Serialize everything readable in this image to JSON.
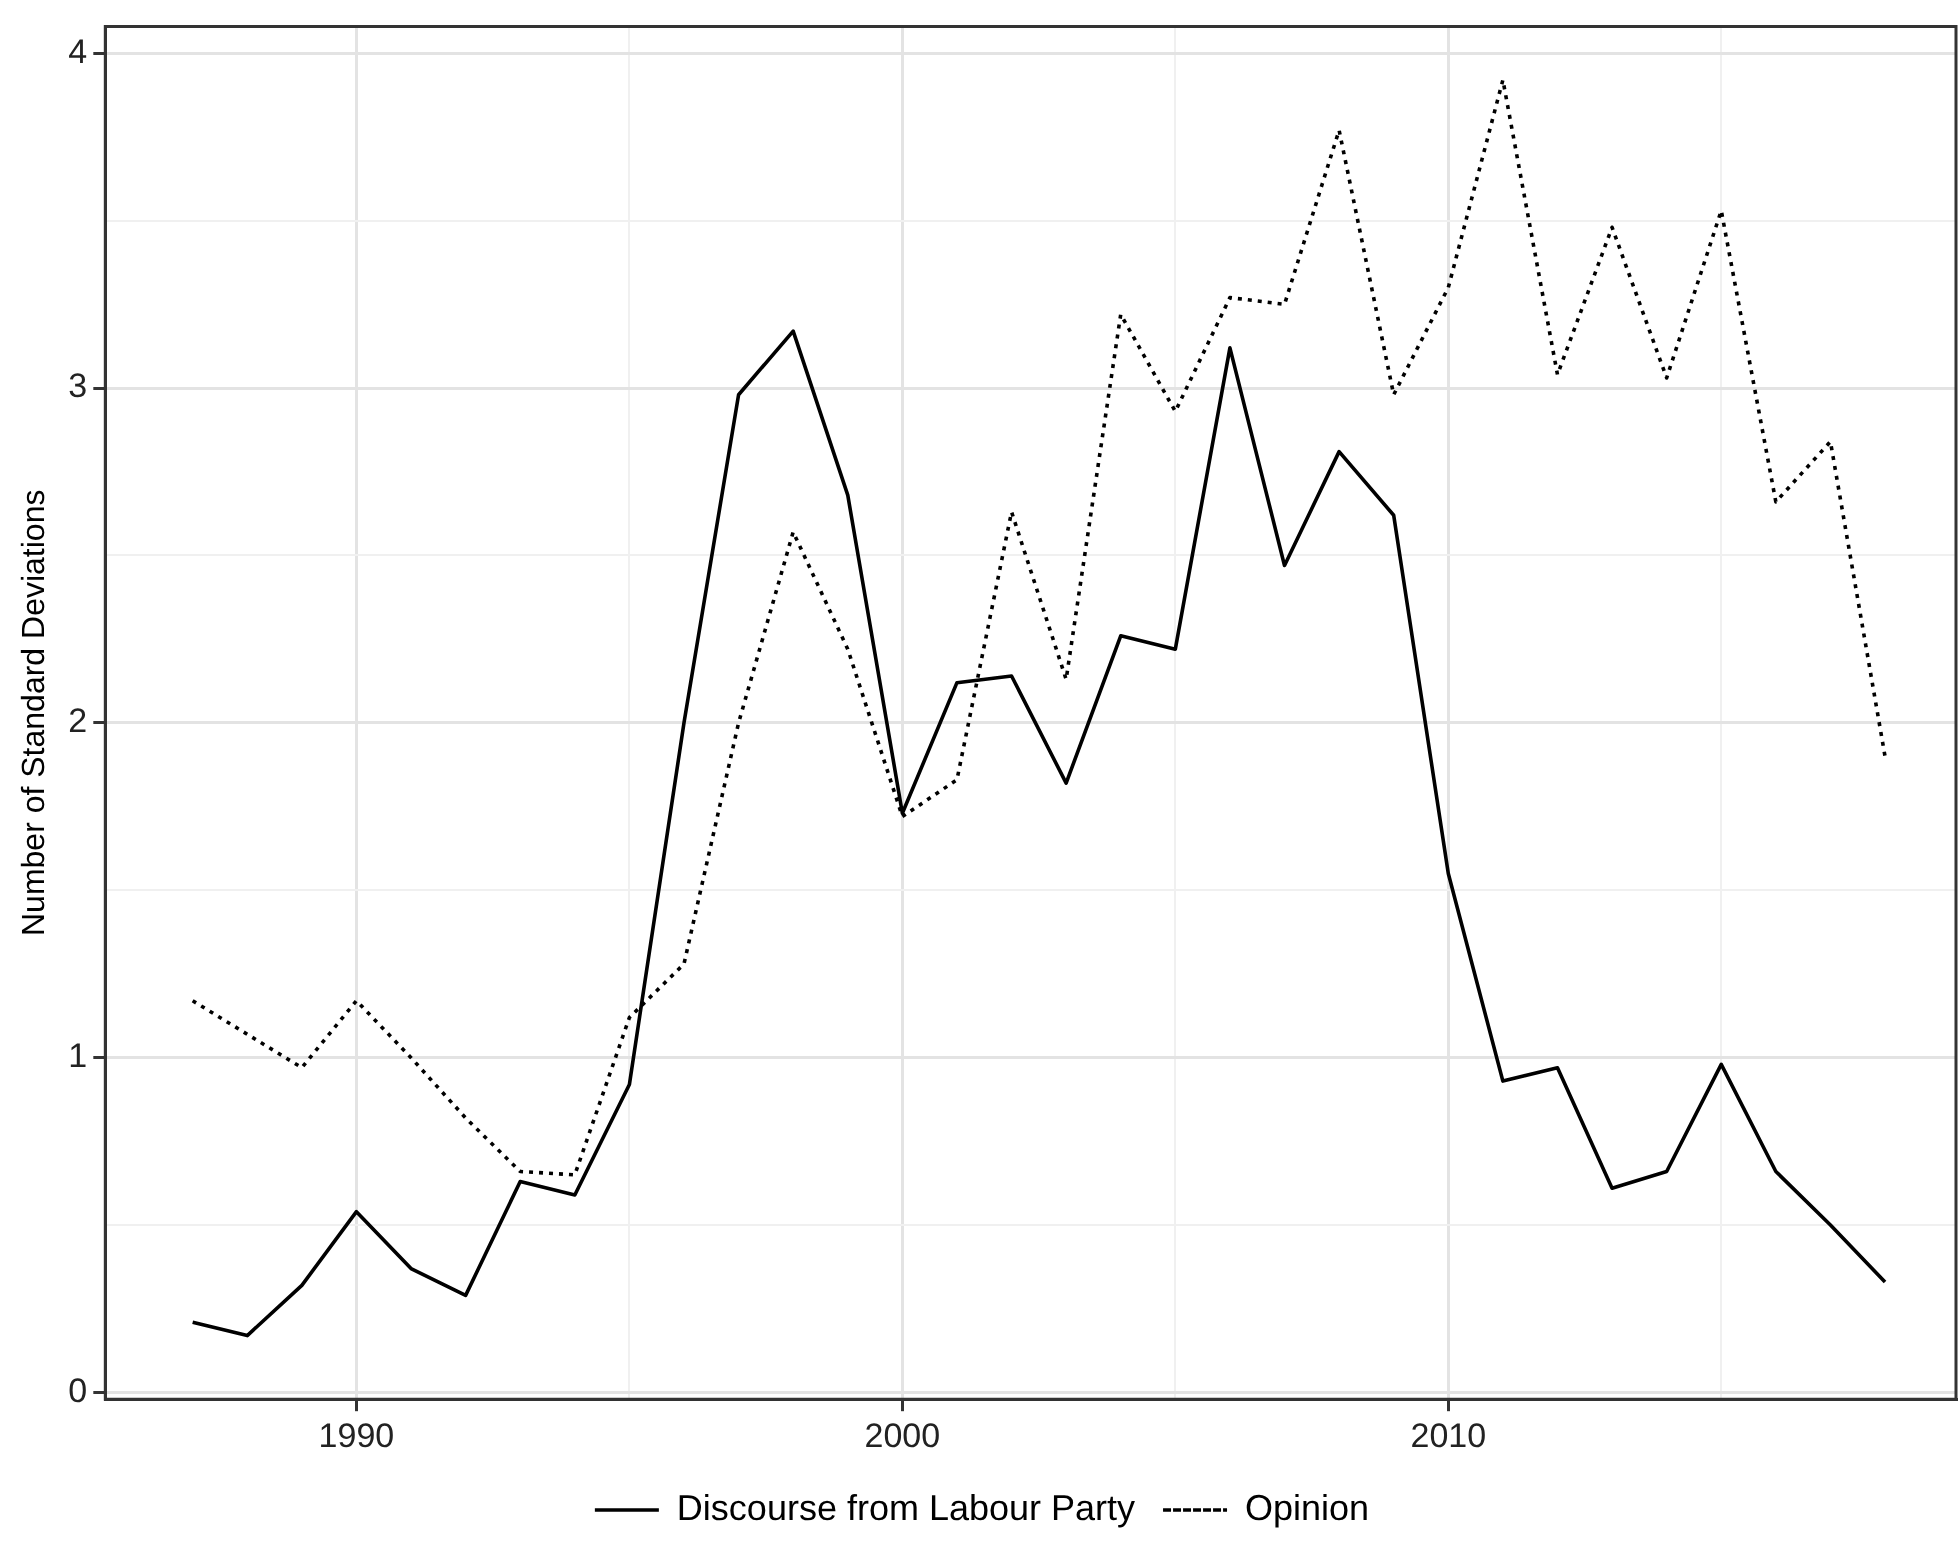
{
  "chart_data": {
    "type": "line",
    "ylabel": "Number of Standard Deviations",
    "x": [
      1987,
      1988,
      1989,
      1990,
      1991,
      1992,
      1993,
      1994,
      1995,
      1996,
      1997,
      1998,
      1999,
      2000,
      2001,
      2002,
      2003,
      2004,
      2005,
      2006,
      2007,
      2008,
      2009,
      2010,
      2011,
      2012,
      2013,
      2014,
      2015,
      2016,
      2017,
      2018
    ],
    "series": [
      {
        "name": "Discourse from Labour Party",
        "color": "#000000",
        "line_style": "solid",
        "values": [
          0.21,
          0.17,
          0.32,
          0.54,
          0.37,
          0.29,
          0.63,
          0.59,
          0.92,
          2.0,
          2.98,
          3.17,
          2.68,
          1.73,
          2.12,
          2.14,
          1.82,
          2.26,
          2.22,
          3.12,
          2.47,
          2.81,
          2.62,
          1.55,
          0.93,
          0.97,
          0.61,
          0.66,
          0.98,
          0.66,
          0.5,
          0.33
        ]
      },
      {
        "name": "Opinion",
        "color": "#000000",
        "line_style": "dotted",
        "values": [
          1.17,
          1.07,
          0.97,
          1.17,
          1.0,
          0.82,
          0.66,
          0.65,
          1.12,
          1.28,
          2.0,
          2.57,
          2.22,
          1.72,
          1.83,
          2.63,
          2.13,
          3.22,
          2.93,
          3.27,
          3.25,
          3.77,
          2.98,
          3.3,
          3.92,
          3.04,
          3.48,
          3.03,
          3.53,
          2.66,
          2.84,
          1.9
        ]
      }
    ],
    "xlim": [
      1985.4,
      2019.3
    ],
    "xticks": [
      1990,
      {
        "value": 1995,
        "label": null
      },
      2000,
      {
        "value": 2005,
        "label": null
      },
      2010,
      {
        "value": 2015,
        "label": null
      }
    ],
    "ylim": [
      -0.02,
      4.08
    ],
    "yticks": [
      0,
      {
        "value": 0.5,
        "label": null
      },
      1,
      {
        "value": 1.5,
        "label": null
      },
      2,
      {
        "value": 2.5,
        "label": null
      },
      3,
      {
        "value": 3.5,
        "label": null
      },
      4
    ],
    "grid": true,
    "legend": "bottom",
    "marker": "none"
  }
}
